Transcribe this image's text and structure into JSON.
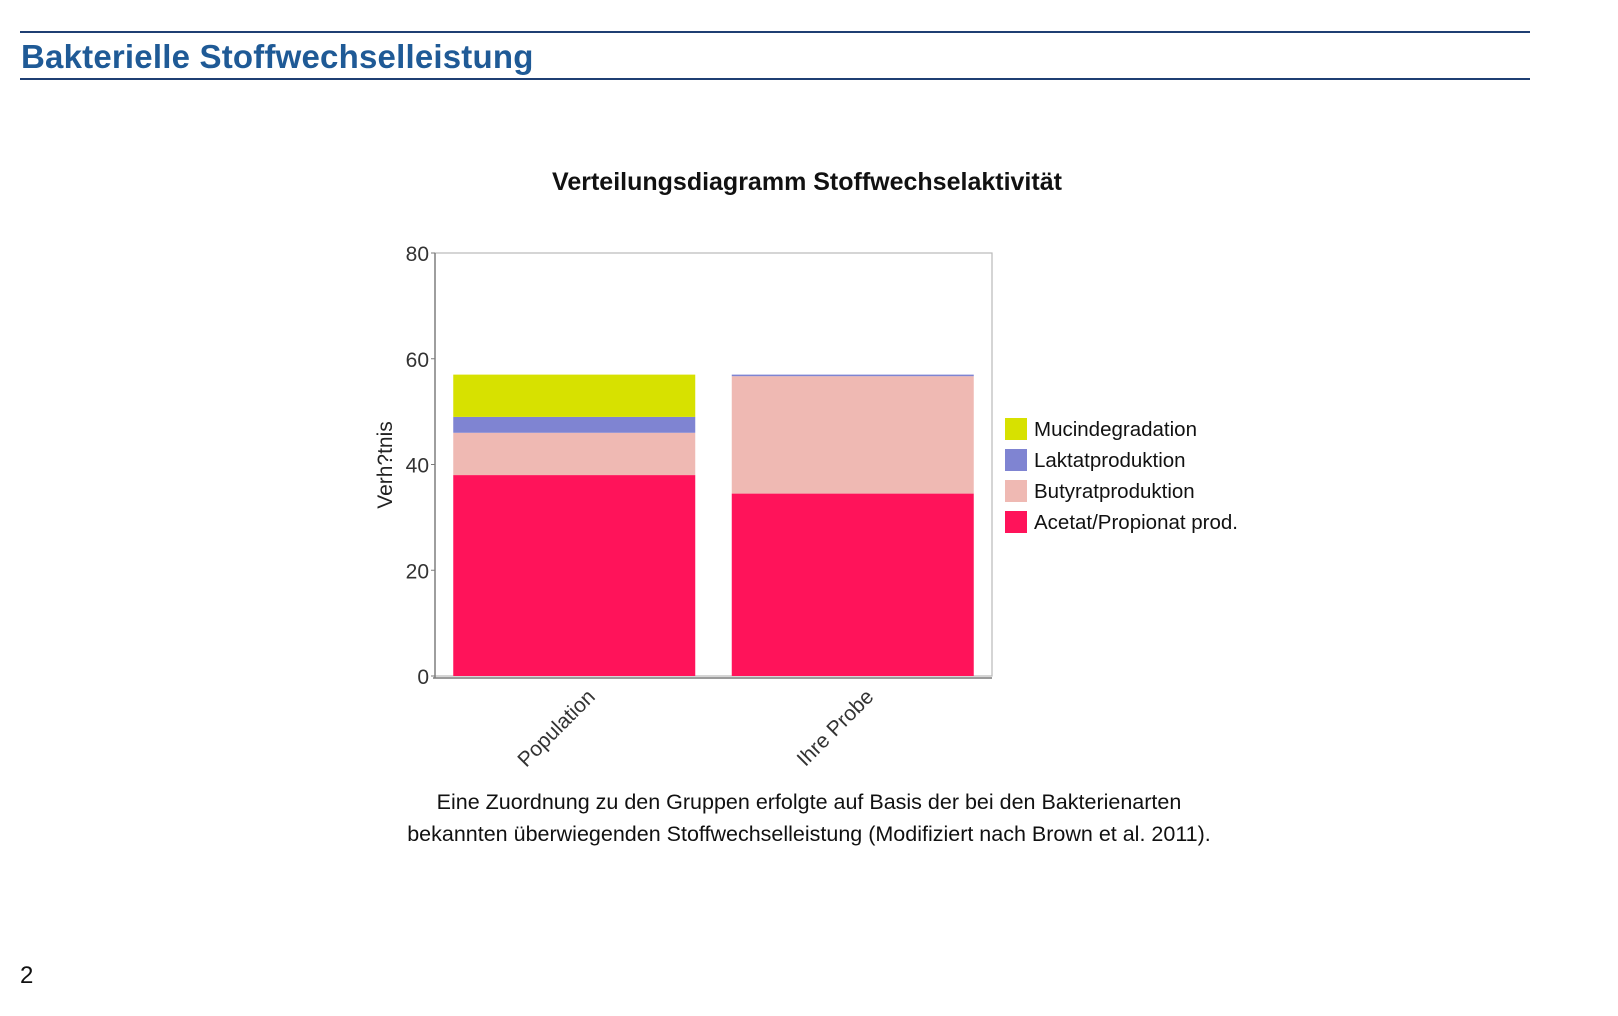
{
  "page": {
    "title": "Bakterielle Stoffwechselleistung",
    "page_number": "2",
    "accent_color": "#1f5a96",
    "rule_color": "#1f3f73"
  },
  "caption": {
    "line1": "Eine Zuordnung zu den Gruppen erfolgte auf Basis der bei den Bakterienarten",
    "line2": "bekannten überwiegenden Stoffwechselleistung (Modifiziert nach Brown et al. 2011)."
  },
  "chart_data": {
    "type": "bar",
    "stacked": true,
    "title": "Verteilungsdiagramm Stoffwechselaktivität",
    "xlabel": "",
    "ylabel": "Verh?tnis",
    "ylim": [
      0,
      80
    ],
    "yticks": [
      "0",
      "20",
      "40",
      "60",
      "80"
    ],
    "grid": false,
    "legend_position": "right",
    "categories": [
      "Population",
      "Ihre Probe"
    ],
    "series": [
      {
        "name": "Acetat/Propionat prod.",
        "color": "#ff135a",
        "values": [
          38,
          34.5
        ]
      },
      {
        "name": "Butyratproduktion",
        "color": "#efb9b3",
        "values": [
          8,
          22.2
        ]
      },
      {
        "name": "Laktatproduktion",
        "color": "#7f84d2",
        "values": [
          3,
          0.3
        ]
      },
      {
        "name": "Mucindegradation",
        "color": "#d7e100",
        "values": [
          8,
          0
        ]
      }
    ],
    "legend_order": [
      "Mucindegradation",
      "Laktatproduktion",
      "Butyratproduktion",
      "Acetat/Propionat prod."
    ]
  }
}
